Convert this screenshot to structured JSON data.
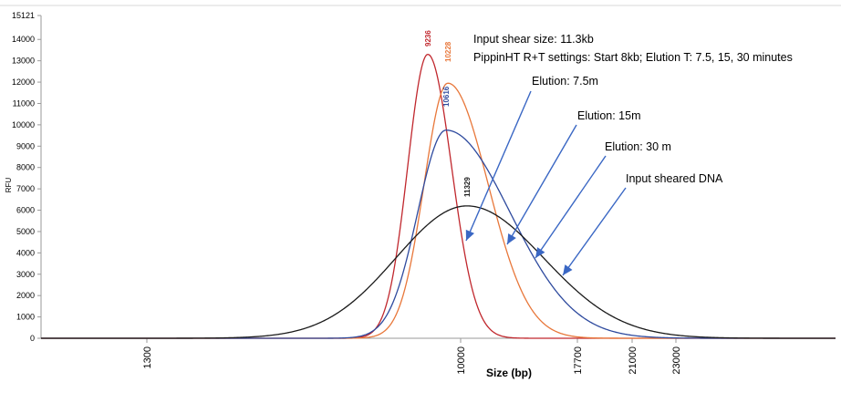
{
  "chart_data": {
    "type": "line",
    "title": "",
    "xlabel": "Size (bp)",
    "ylabel": "RFU",
    "ylim": [
      0,
      15121
    ],
    "y_ticks": [
      "0",
      "1000",
      "2000",
      "3000",
      "4000",
      "5000",
      "6000",
      "7000",
      "8000",
      "9000",
      "10000",
      "11000",
      "12000",
      "13000",
      "14000",
      "15121"
    ],
    "x_ticks": [
      "1300",
      "10000",
      "17700",
      "21000",
      "23000"
    ],
    "info_lines": [
      "Input shear size: 11.3kb",
      "PippinHT R+T settings: Start 8kb; Elution T: 7.5, 15, 30 minutes"
    ],
    "series": [
      {
        "name": "Elution: 7.5m",
        "color": "#c0272d",
        "peak_label": "9236",
        "peak_x": 9236,
        "peak_y": 13300
      },
      {
        "name": "Elution: 15m",
        "color": "#e8773a",
        "peak_label": "10228",
        "peak_x": 10228,
        "peak_y": 11950
      },
      {
        "name": "Elution: 30 m",
        "color": "#2e4a9e",
        "peak_label": "10616",
        "peak_x": 10616,
        "peak_y": 9750
      },
      {
        "name": "Input sheared DNA",
        "color": "#1a1a1a",
        "peak_label": "11329",
        "peak_x": 11329,
        "peak_y": 6200
      }
    ],
    "arrow_color": "#3a67c4"
  }
}
